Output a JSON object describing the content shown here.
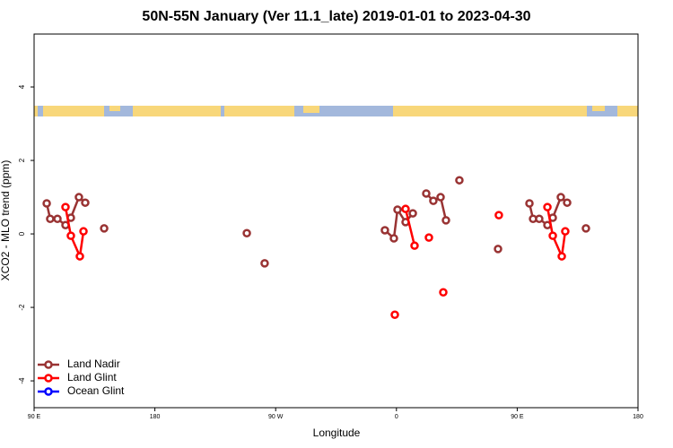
{
  "chart_data": {
    "type": "line",
    "title": "50N-55N January (Ver 11.1_late)   2019-01-01 to 2023-04-30",
    "x_label": "Longitude",
    "y_label": "XCO2 - MLO trend (ppm)",
    "xlim": [
      90,
      540
    ],
    "ylim": [
      -4.73,
      5.44
    ],
    "xticks": [
      {
        "value": 90,
        "label": "90 E"
      },
      180,
      {
        "value": 270,
        "label": "90 W"
      },
      {
        "value": 360,
        "label": "0"
      },
      {
        "value": 450,
        "label": "90 E"
      },
      {
        "value": 540,
        "label": "180"
      }
    ],
    "yticks": [
      -4,
      -2,
      0,
      2,
      4
    ],
    "legend": "bottomleft",
    "series": [
      {
        "name": "Land Nadir",
        "color": "#993333",
        "x": [
          99.4,
          102.0,
          107.4,
          113.4,
          117.4,
          123.4,
          128.1,
          null,
          142.2,
          null,
          248.5,
          null,
          261.8,
          null,
          351.4,
          358.1,
          360.8,
          366.8,
          372.2,
          null,
          382.2,
          387.5,
          392.9,
          396.9,
          null,
          406.9,
          null,
          435.7,
          null,
          459.1,
          461.8,
          466.4,
          472.5,
          476.5,
          482.5,
          487.2,
          null,
          501.2
        ],
        "values": [
          0.83,
          0.41,
          0.41,
          0.24,
          0.44,
          1.0,
          0.85,
          null,
          0.15,
          null,
          0.02,
          null,
          -0.8,
          null,
          0.1,
          -0.12,
          0.66,
          0.32,
          0.56,
          null,
          1.1,
          0.9,
          1.0,
          0.37,
          null,
          1.46,
          null,
          -0.41,
          null,
          0.83,
          0.41,
          0.41,
          0.24,
          0.44,
          1.0,
          0.85,
          null,
          0.15
        ]
      },
      {
        "name": "Land Glint",
        "color": "#ff0000",
        "x": [
          113.4,
          117.4,
          124.1,
          126.8,
          null,
          358.8,
          null,
          366.8,
          373.5,
          null,
          384.2,
          null,
          394.9,
          null,
          436.3,
          null,
          472.5,
          476.5,
          483.2,
          485.8
        ],
        "values": [
          0.73,
          -0.05,
          -0.61,
          0.07,
          null,
          -2.2,
          null,
          0.68,
          -0.32,
          null,
          -0.1,
          null,
          -1.59,
          null,
          0.51,
          null,
          0.73,
          -0.05,
          -0.61,
          0.07
        ]
      },
      {
        "name": "Ocean Glint",
        "color": "#0000ff",
        "x": [],
        "values": []
      }
    ]
  }
}
